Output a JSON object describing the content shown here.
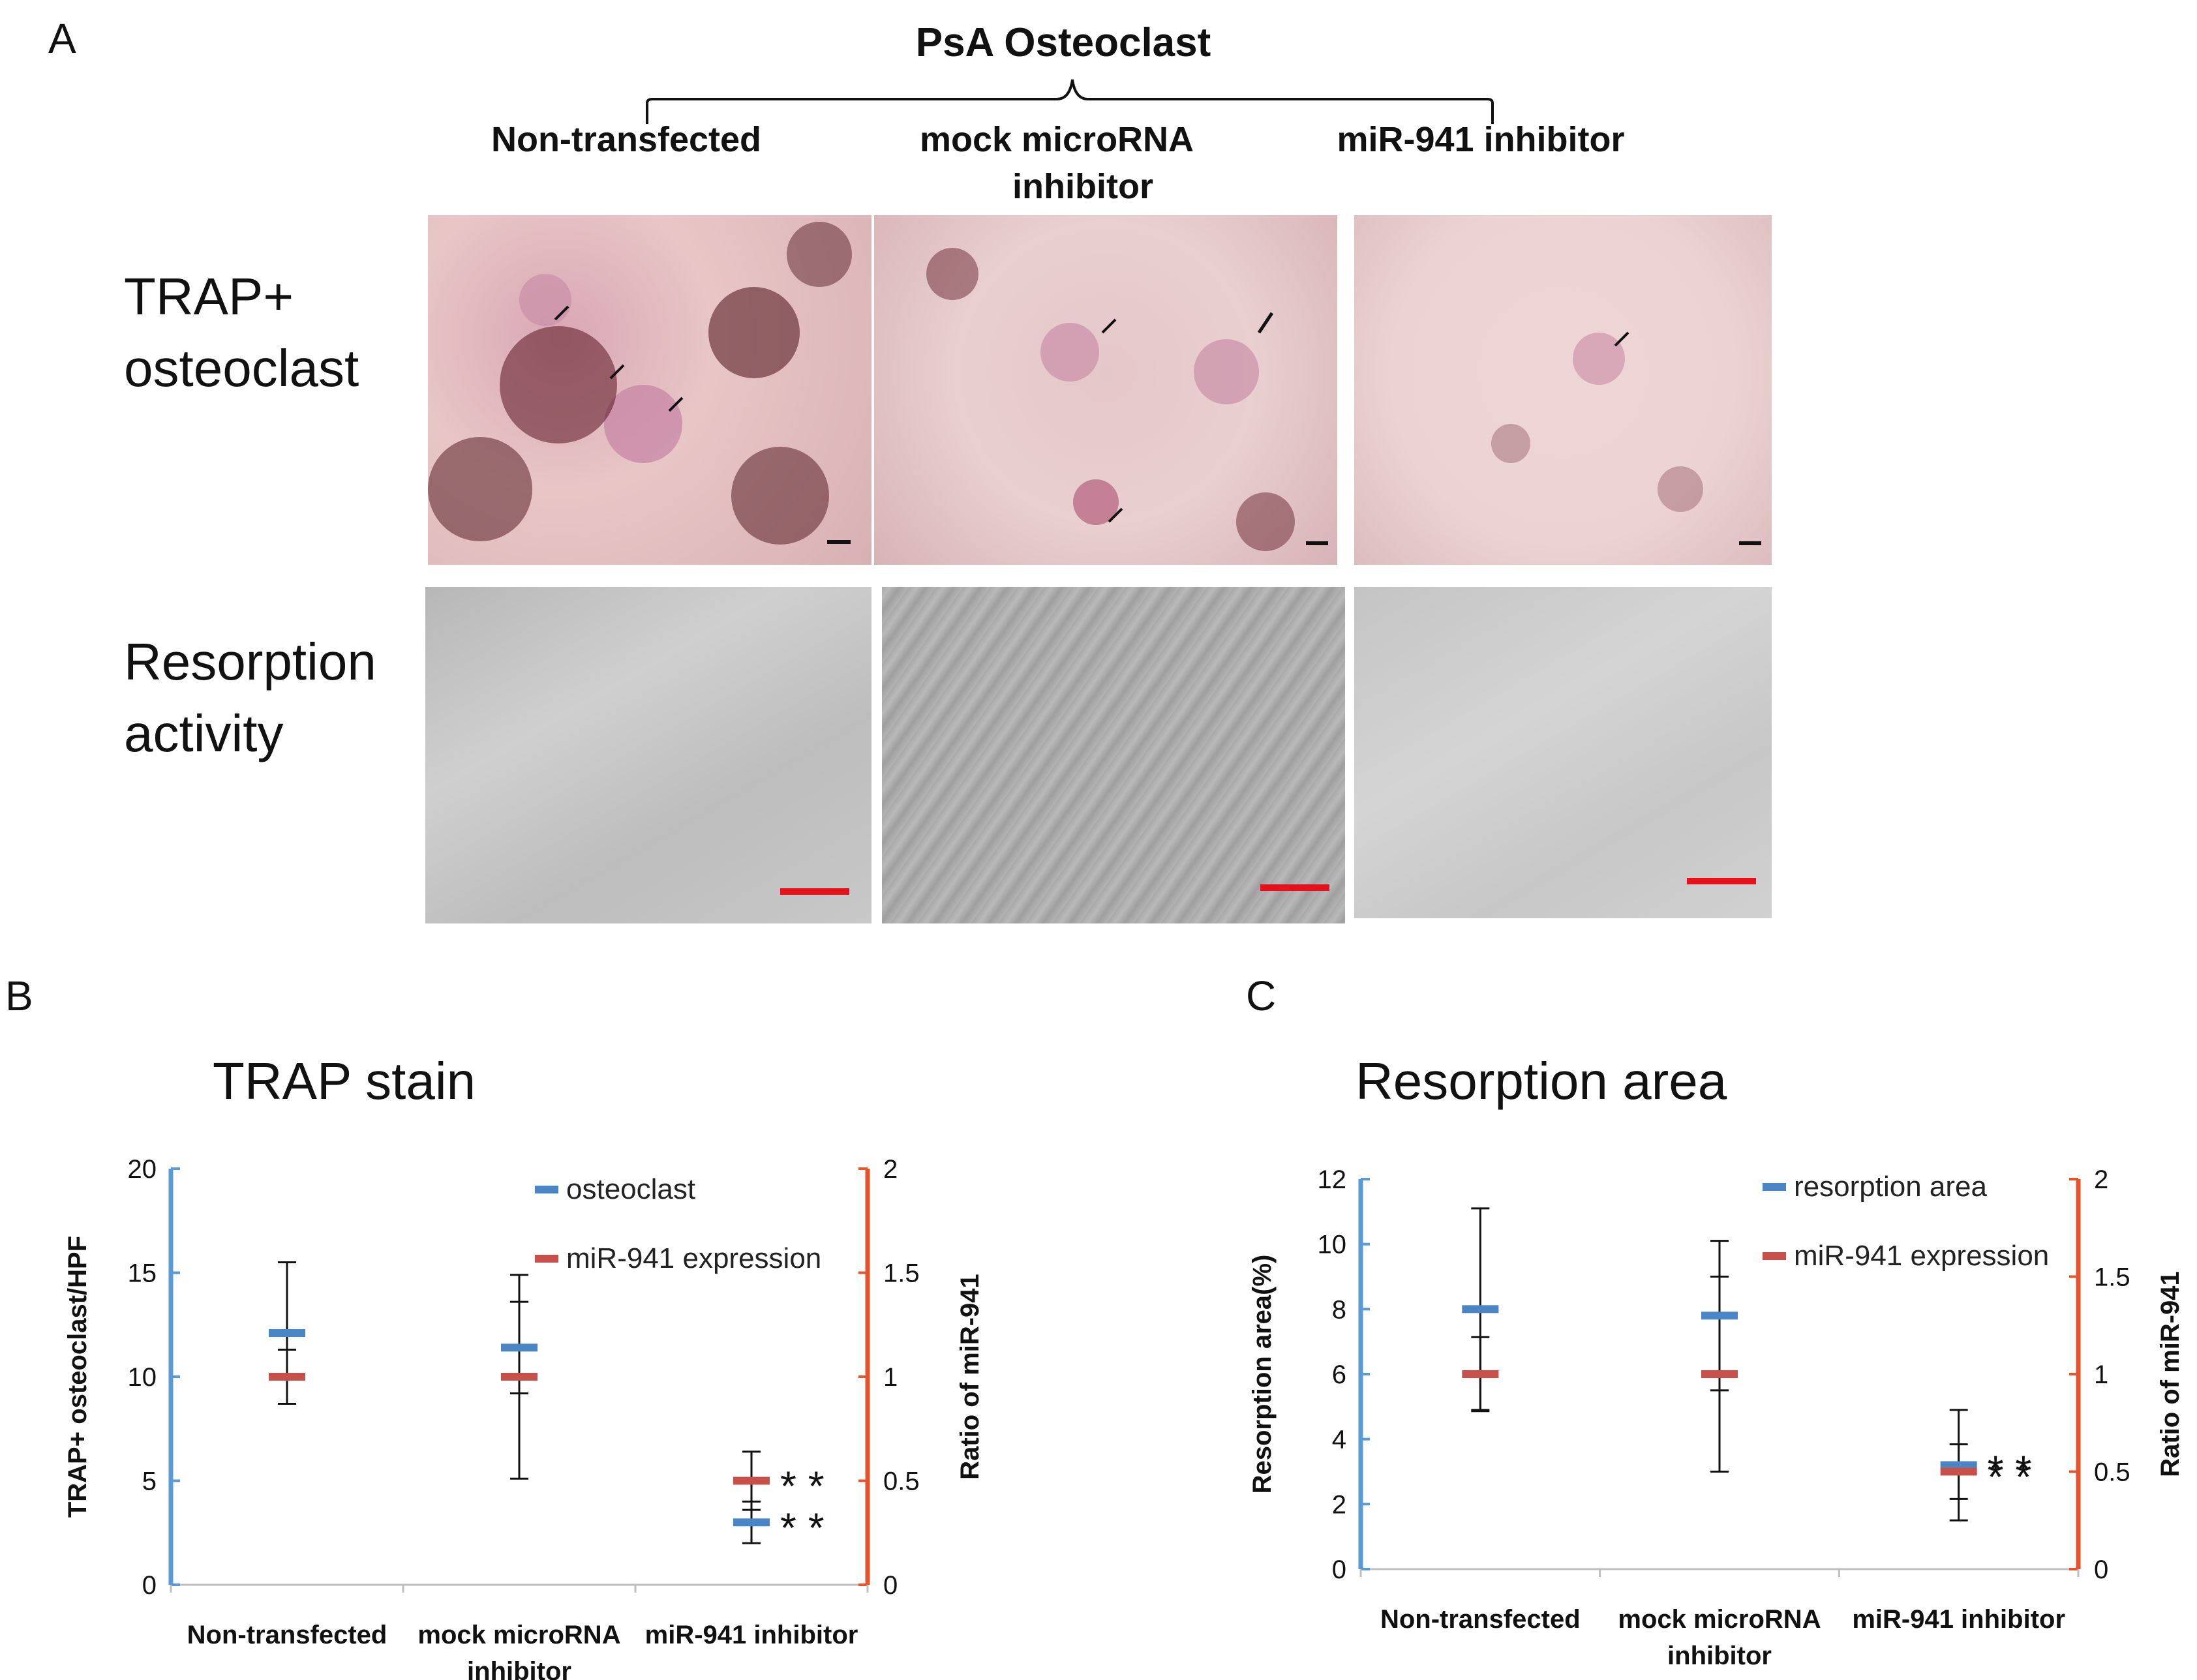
{
  "figure": {
    "panel_a_label": "A",
    "panel_b_label": "B",
    "panel_c_label": "C",
    "header_title": "PsA  Osteoclast",
    "columns": [
      {
        "line1": "Non-transfected",
        "line2": ""
      },
      {
        "line1": "mock microRNA",
        "line2": "inhibitor"
      },
      {
        "line1": "miR-941 inhibitor",
        "line2": ""
      }
    ],
    "rows": [
      {
        "line1": "TRAP+",
        "line2": "osteoclast"
      },
      {
        "line1": "Resorption",
        "line2": "activity"
      }
    ],
    "colors": {
      "trap_bg": "#e8c6c6",
      "resorption_bg": "#b9b9b9",
      "scalebar": "#e8101a",
      "blue_series": "#4a86c5",
      "red_series": "#c9504a",
      "left_axis": "#5b9bd5",
      "right_axis": "#e4542f"
    }
  },
  "chart_data": [
    {
      "type": "scatter",
      "title": "TRAP stain",
      "categories": [
        "Non-transfected",
        "mock microRNA\ninhibitor",
        "miR-941 inhibitor"
      ],
      "ylabel": "TRAP+ osteoclast/HPF",
      "y2label": "Ratio of miR-941",
      "ylim": [
        0,
        20
      ],
      "y2lim": [
        0,
        2
      ],
      "yticks": [
        "0",
        "5",
        "10",
        "15",
        "20"
      ],
      "y2ticks": [
        "0",
        "0.5",
        "1",
        "1.5",
        "2"
      ],
      "series": [
        {
          "name": "osteoclast",
          "axis": "left",
          "values": [
            12.1,
            11.4,
            3.0
          ],
          "err": [
            3.4,
            2.2,
            1.0
          ]
        },
        {
          "name": "miR-941 expression",
          "axis": "right",
          "values": [
            1.0,
            1.0,
            0.5
          ],
          "err": [
            0.13,
            0.49,
            0.14
          ]
        }
      ],
      "annotations": [
        {
          "text": "**",
          "series": "miR-941 expression",
          "category": 2
        },
        {
          "text": "**",
          "series": "osteoclast",
          "category": 2
        }
      ],
      "legend": "top-right"
    },
    {
      "type": "scatter",
      "title": "Resorption area",
      "categories": [
        "Non-transfected",
        "mock microRNA\ninhibitor",
        "miR-941 inhibitor"
      ],
      "ylabel": "Resorption area(%)",
      "y2label": "Ratio of miR-941",
      "ylim": [
        0,
        12
      ],
      "y2lim": [
        0,
        2
      ],
      "yticks": [
        "0",
        "2",
        "4",
        "6",
        "8",
        "10",
        "12"
      ],
      "y2ticks": [
        "0",
        "0.5",
        "1",
        "1.5",
        "2"
      ],
      "series": [
        {
          "name": "resorption area",
          "axis": "left",
          "values": [
            8.0,
            7.8,
            3.2
          ],
          "err": [
            3.1,
            2.3,
            1.7
          ]
        },
        {
          "name": "miR-941 expression",
          "axis": "right",
          "values": [
            1.0,
            1.0,
            0.5
          ],
          "err": [
            0.19,
            0.5,
            0.14
          ]
        }
      ],
      "annotations": [
        {
          "text": "**",
          "series": "resorption area",
          "category": 2
        },
        {
          "text": "**",
          "series": "miR-941 expression",
          "category": 2
        }
      ],
      "legend": "top-right"
    }
  ]
}
